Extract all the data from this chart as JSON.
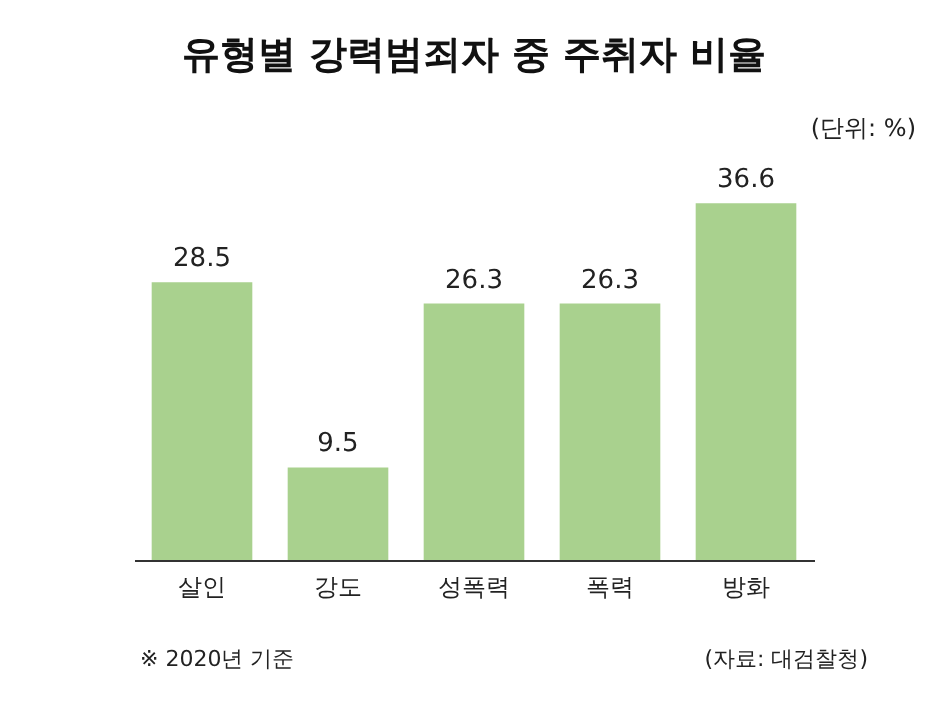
{
  "chart_data": {
    "type": "bar",
    "title": "유형별 강력범죄자 중 주취자 비율",
    "subtitle": "(단위: %)",
    "categories": [
      "살인",
      "강도",
      "성폭력",
      "폭력",
      "방화"
    ],
    "values": [
      28.5,
      9.5,
      26.3,
      26.3,
      36.6
    ],
    "color": "#a9d18e",
    "data_labels": true,
    "annotations": [
      "※ 2020년 기준",
      "(자료: 대검찰청)"
    ]
  }
}
